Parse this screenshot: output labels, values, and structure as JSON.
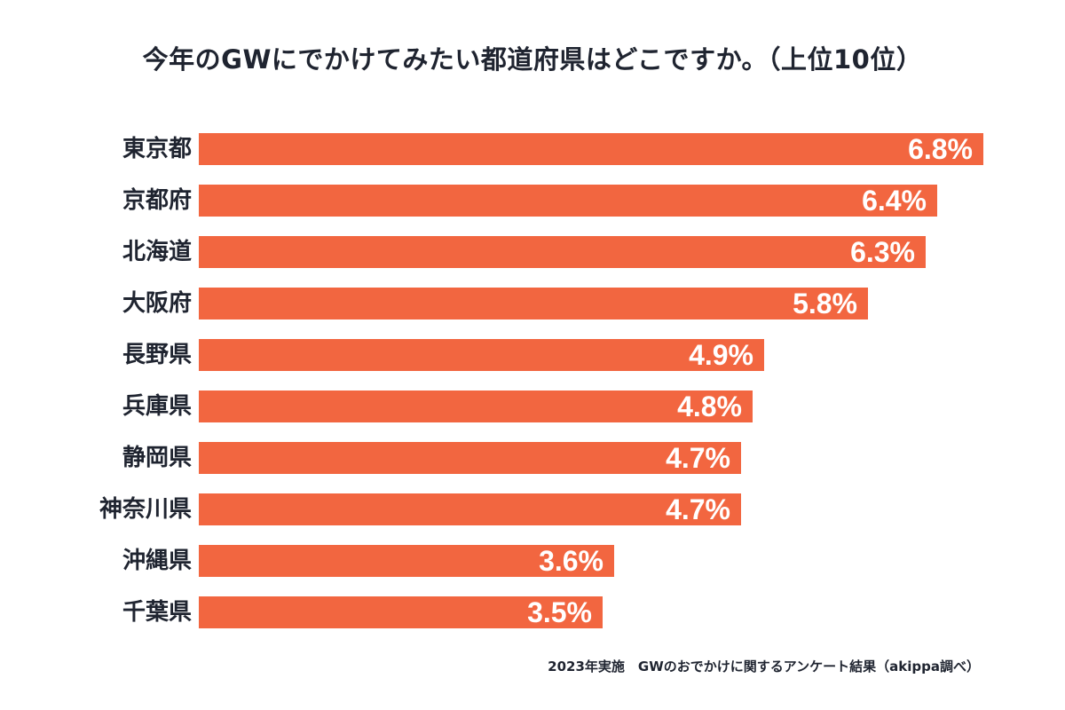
{
  "chart_data": {
    "type": "bar",
    "orientation": "horizontal",
    "title": "今年のGWにでかけてみたい都道府県はどこですか。（上位10位）",
    "categories": [
      "東京都",
      "京都府",
      "北海道",
      "大阪府",
      "長野県",
      "兵庫県",
      "静岡県",
      "神奈川県",
      "沖縄県",
      "千葉県"
    ],
    "values": [
      6.8,
      6.4,
      6.3,
      5.8,
      4.9,
      4.8,
      4.7,
      4.7,
      3.6,
      3.5
    ],
    "value_labels": [
      "6.8%",
      "6.4%",
      "6.3%",
      "5.8%",
      "4.9%",
      "4.8%",
      "4.7%",
      "4.7%",
      "3.6%",
      "3.5%"
    ],
    "unit": "%",
    "xlim": [
      0,
      6.8
    ],
    "grid": false,
    "legend": "none",
    "bar_color": "#f26640",
    "label_color": "#ffffff",
    "text_color": "#1f2430"
  },
  "footer": {
    "note": "2023年実施　GWのおでかけに関するアンケート結果（akippa調べ）"
  }
}
